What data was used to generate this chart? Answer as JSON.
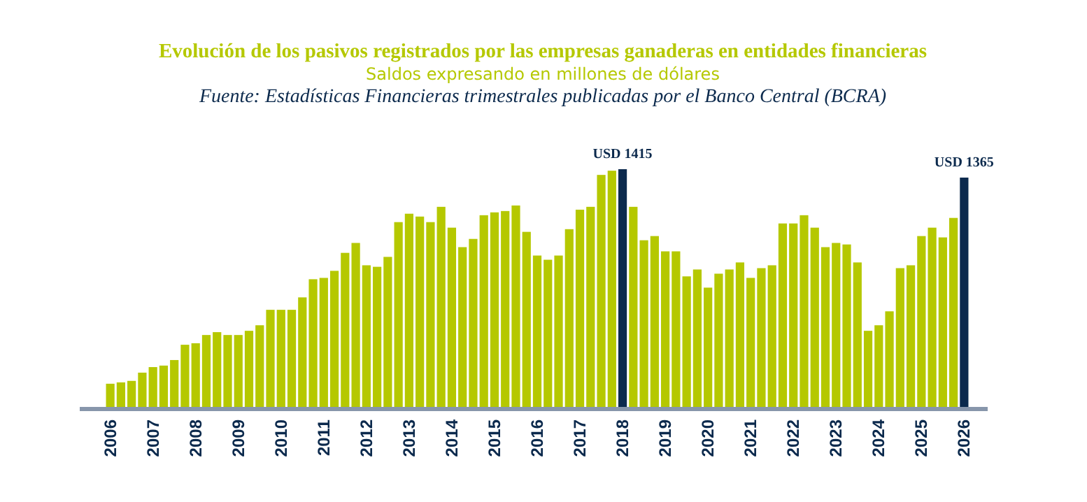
{
  "chart_data": {
    "type": "bar",
    "title": "Evolución de los pasivos registrados por las empresas ganaderas en entidades financieras",
    "subtitle": "Saldos expresando en millones de dólares",
    "annotations": [
      "Fuente: Estadísticas Financieras trimestrales publicadas por el Banco Central (BCRA)"
    ],
    "categories": [
      "2006",
      null,
      null,
      null,
      "2007",
      null,
      null,
      null,
      "2008",
      null,
      null,
      null,
      "2009",
      null,
      null,
      null,
      "2010",
      null,
      null,
      null,
      "2011",
      null,
      null,
      null,
      "2012",
      null,
      null,
      null,
      "2013",
      null,
      null,
      null,
      "2014",
      null,
      null,
      null,
      "2015",
      null,
      null,
      null,
      "2016",
      null,
      null,
      null,
      "2017",
      null,
      null,
      null,
      "2018",
      null,
      null,
      null,
      "2019",
      null,
      null,
      null,
      "2020",
      null,
      null,
      null,
      "2021",
      null,
      null,
      null,
      "2022",
      null,
      null,
      null,
      "2023",
      null,
      null,
      null,
      "2024",
      null,
      null,
      null,
      "2025",
      null,
      null,
      null,
      "2026"
    ],
    "values": [
      138,
      146,
      155,
      204,
      237,
      246,
      279,
      370,
      379,
      428,
      445,
      428,
      428,
      453,
      486,
      578,
      578,
      578,
      652,
      760,
      768,
      810,
      917,
      976,
      843,
      834,
      893,
      1100,
      1150,
      1133,
      1100,
      1191,
      1067,
      951,
      1000,
      1141,
      1158,
      1166,
      1199,
      1042,
      901,
      876,
      901,
      1058,
      1174,
      1191,
      1381,
      1406,
      1415,
      1191,
      992,
      1017,
      926,
      926,
      777,
      818,
      710,
      793,
      818,
      860,
      768,
      826,
      843,
      1092,
      1092,
      1141,
      1067,
      951,
      976,
      967,
      860,
      453,
      486,
      569,
      826,
      843,
      1017,
      1067,
      1009,
      1125,
      1365
    ],
    "colors": [
      "#b5c800",
      "#b5c800",
      "#b5c800",
      "#b5c800",
      "#b5c800",
      "#b5c800",
      "#b5c800",
      "#b5c800",
      "#b5c800",
      "#b5c800",
      "#b5c800",
      "#b5c800",
      "#b5c800",
      "#b5c800",
      "#b5c800",
      "#b5c800",
      "#b5c800",
      "#b5c800",
      "#b5c800",
      "#b5c800",
      "#b5c800",
      "#b5c800",
      "#b5c800",
      "#b5c800",
      "#b5c800",
      "#b5c800",
      "#b5c800",
      "#b5c800",
      "#b5c800",
      "#b5c800",
      "#b5c800",
      "#b5c800",
      "#b5c800",
      "#b5c800",
      "#b5c800",
      "#b5c800",
      "#b5c800",
      "#b5c800",
      "#b5c800",
      "#b5c800",
      "#b5c800",
      "#b5c800",
      "#b5c800",
      "#b5c800",
      "#b5c800",
      "#b5c800",
      "#b5c800",
      "#b5c800",
      "#0c2a4d",
      "#b5c800",
      "#b5c800",
      "#b5c800",
      "#b5c800",
      "#b5c800",
      "#b5c800",
      "#b5c800",
      "#b5c800",
      "#b5c800",
      "#b5c800",
      "#b5c800",
      "#b5c800",
      "#b5c800",
      "#b5c800",
      "#b5c800",
      "#b5c800",
      "#b5c800",
      "#b5c800",
      "#b5c800",
      "#b5c800",
      "#b5c800",
      "#b5c800",
      "#b5c800",
      "#b5c800",
      "#b5c800",
      "#b5c800",
      "#b5c800",
      "#b5c800",
      "#b5c800",
      "#b5c800",
      "#b5c800",
      "#0c2a4d"
    ],
    "value_labels": [
      null,
      null,
      null,
      null,
      null,
      null,
      null,
      null,
      null,
      null,
      null,
      null,
      null,
      null,
      null,
      null,
      null,
      null,
      null,
      null,
      null,
      null,
      null,
      null,
      null,
      null,
      null,
      null,
      null,
      null,
      null,
      null,
      null,
      null,
      null,
      null,
      null,
      null,
      null,
      null,
      null,
      null,
      null,
      null,
      null,
      null,
      null,
      null,
      "USD 1415",
      null,
      null,
      null,
      null,
      null,
      null,
      null,
      null,
      null,
      null,
      null,
      null,
      null,
      null,
      null,
      null,
      null,
      null,
      null,
      null,
      null,
      null,
      null,
      null,
      null,
      null,
      null,
      null,
      null,
      null,
      null,
      "USD 1365"
    ]
  }
}
